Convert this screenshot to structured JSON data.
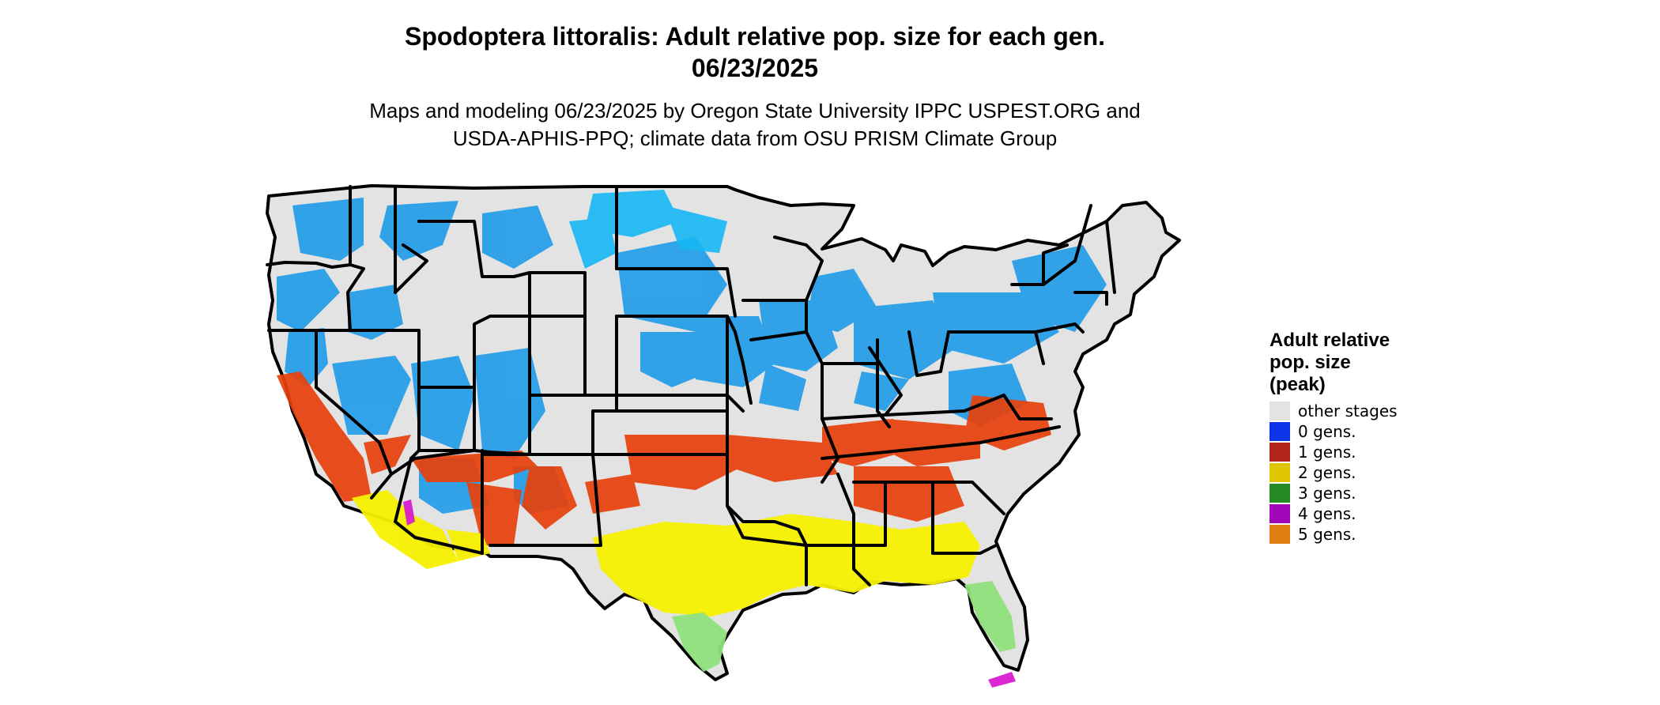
{
  "title": {
    "line1": "Spodoptera littoralis: Adult relative pop. size for each gen.",
    "line2": "06/23/2025"
  },
  "subtitle": {
    "line1": "Maps and modeling 06/23/2025 by Oregon State University IPPC USPEST.ORG and",
    "line2": "USDA-APHIS-PPQ; climate data from OSU PRISM Climate Group"
  },
  "legend": {
    "title_line1": "Adult relative",
    "title_line2": "pop. size",
    "title_line3": "(peak)",
    "items": [
      {
        "label": "other stages",
        "color": "#e3e3e3"
      },
      {
        "label": "0 gens.",
        "color": "#0b35e6"
      },
      {
        "label": "1 gens.",
        "color": "#b22318"
      },
      {
        "label": "2 gens.",
        "color": "#ddc600"
      },
      {
        "label": "3 gens.",
        "color": "#238b22"
      },
      {
        "label": "4 gens.",
        "color": "#a208b8"
      },
      {
        "label": "5 gens.",
        "color": "#e07e12"
      }
    ]
  },
  "map_colors": {
    "background": "#e3e3e3",
    "cool_zone": "#1e9be8",
    "cool_zone_light": "#16b7f5",
    "one_gen_zone": "#e8410c",
    "two_gen_zone": "#f6f000",
    "three_gen_zone": "#8fe07c",
    "four_gen_zone": "#d81bd0",
    "border": "#000000"
  }
}
